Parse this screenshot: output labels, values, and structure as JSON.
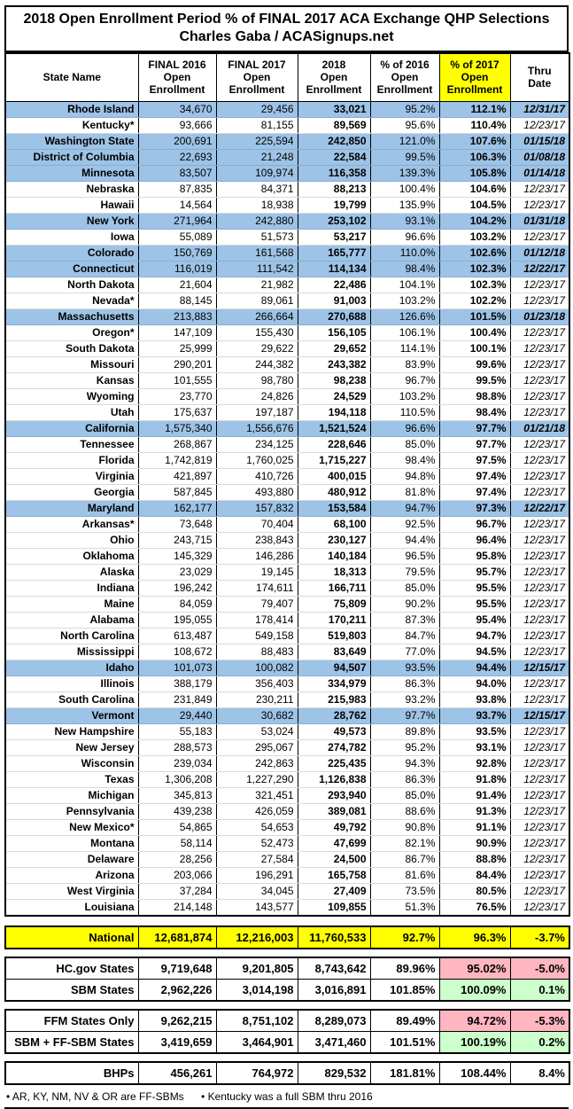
{
  "colors": {
    "sbm_row_blue": "#9DC3E6",
    "highlight_yellow": "#FFFF00",
    "negative_pink": "#FFB6C1",
    "positive_green": "#CCFFCC",
    "border_black": "#000000"
  },
  "chart_data": {
    "type": "table",
    "title": "2018 Open Enrollment Period % of FINAL 2017 ACA Exchange QHP Selections",
    "subtitle": "Charles Gaba / ACASignups.net",
    "columns": [
      "State Name",
      "FINAL 2016\nOpen\nEnrollment",
      "FINAL 2017\nOpen\nEnrollment",
      "2018\nOpen\nEnrollment",
      "% of 2016\nOpen\nEnrollment",
      "% of 2017\nOpen\nEnrollment",
      "Thru\nDate"
    ],
    "row_schema": [
      "state_name",
      "final_2016_open_enrollment",
      "final_2017_open_enrollment",
      "2018_open_enrollment",
      "pct_of_2016_open_enrollment",
      "pct_of_2017_open_enrollment",
      "thru_date",
      "blue_highlighted"
    ],
    "rows": [
      [
        "Rhode Island",
        "34,670",
        "29,456",
        "33,021",
        "95.2%",
        "112.1%",
        "12/31/17",
        true
      ],
      [
        "Kentucky*",
        "93,666",
        "81,155",
        "89,569",
        "95.6%",
        "110.4%",
        "12/23/17",
        false
      ],
      [
        "Washington State",
        "200,691",
        "225,594",
        "242,850",
        "121.0%",
        "107.6%",
        "01/15/18",
        true
      ],
      [
        "District of Columbia",
        "22,693",
        "21,248",
        "22,584",
        "99.5%",
        "106.3%",
        "01/08/18",
        true
      ],
      [
        "Minnesota",
        "83,507",
        "109,974",
        "116,358",
        "139.3%",
        "105.8%",
        "01/14/18",
        true
      ],
      [
        "Nebraska",
        "87,835",
        "84,371",
        "88,213",
        "100.4%",
        "104.6%",
        "12/23/17",
        false
      ],
      [
        "Hawaii",
        "14,564",
        "18,938",
        "19,799",
        "135.9%",
        "104.5%",
        "12/23/17",
        false
      ],
      [
        "New York",
        "271,964",
        "242,880",
        "253,102",
        "93.1%",
        "104.2%",
        "01/31/18",
        true
      ],
      [
        "Iowa",
        "55,089",
        "51,573",
        "53,217",
        "96.6%",
        "103.2%",
        "12/23/17",
        false
      ],
      [
        "Colorado",
        "150,769",
        "161,568",
        "165,777",
        "110.0%",
        "102.6%",
        "01/12/18",
        true
      ],
      [
        "Connecticut",
        "116,019",
        "111,542",
        "114,134",
        "98.4%",
        "102.3%",
        "12/22/17",
        true
      ],
      [
        "North Dakota",
        "21,604",
        "21,982",
        "22,486",
        "104.1%",
        "102.3%",
        "12/23/17",
        false
      ],
      [
        "Nevada*",
        "88,145",
        "89,061",
        "91,003",
        "103.2%",
        "102.2%",
        "12/23/17",
        false
      ],
      [
        "Massachusetts",
        "213,883",
        "266,664",
        "270,688",
        "126.6%",
        "101.5%",
        "01/23/18",
        true
      ],
      [
        "Oregon*",
        "147,109",
        "155,430",
        "156,105",
        "106.1%",
        "100.4%",
        "12/23/17",
        false
      ],
      [
        "South Dakota",
        "25,999",
        "29,622",
        "29,652",
        "114.1%",
        "100.1%",
        "12/23/17",
        false
      ],
      [
        "Missouri",
        "290,201",
        "244,382",
        "243,382",
        "83.9%",
        "99.6%",
        "12/23/17",
        false
      ],
      [
        "Kansas",
        "101,555",
        "98,780",
        "98,238",
        "96.7%",
        "99.5%",
        "12/23/17",
        false
      ],
      [
        "Wyoming",
        "23,770",
        "24,826",
        "24,529",
        "103.2%",
        "98.8%",
        "12/23/17",
        false
      ],
      [
        "Utah",
        "175,637",
        "197,187",
        "194,118",
        "110.5%",
        "98.4%",
        "12/23/17",
        false
      ],
      [
        "California",
        "1,575,340",
        "1,556,676",
        "1,521,524",
        "96.6%",
        "97.7%",
        "01/21/18",
        true
      ],
      [
        "Tennessee",
        "268,867",
        "234,125",
        "228,646",
        "85.0%",
        "97.7%",
        "12/23/17",
        false
      ],
      [
        "Florida",
        "1,742,819",
        "1,760,025",
        "1,715,227",
        "98.4%",
        "97.5%",
        "12/23/17",
        false
      ],
      [
        "Virginia",
        "421,897",
        "410,726",
        "400,015",
        "94.8%",
        "97.4%",
        "12/23/17",
        false
      ],
      [
        "Georgia",
        "587,845",
        "493,880",
        "480,912",
        "81.8%",
        "97.4%",
        "12/23/17",
        false
      ],
      [
        "Maryland",
        "162,177",
        "157,832",
        "153,584",
        "94.7%",
        "97.3%",
        "12/22/17",
        true
      ],
      [
        "Arkansas*",
        "73,648",
        "70,404",
        "68,100",
        "92.5%",
        "96.7%",
        "12/23/17",
        false
      ],
      [
        "Ohio",
        "243,715",
        "238,843",
        "230,127",
        "94.4%",
        "96.4%",
        "12/23/17",
        false
      ],
      [
        "Oklahoma",
        "145,329",
        "146,286",
        "140,184",
        "96.5%",
        "95.8%",
        "12/23/17",
        false
      ],
      [
        "Alaska",
        "23,029",
        "19,145",
        "18,313",
        "79.5%",
        "95.7%",
        "12/23/17",
        false
      ],
      [
        "Indiana",
        "196,242",
        "174,611",
        "166,711",
        "85.0%",
        "95.5%",
        "12/23/17",
        false
      ],
      [
        "Maine",
        "84,059",
        "79,407",
        "75,809",
        "90.2%",
        "95.5%",
        "12/23/17",
        false
      ],
      [
        "Alabama",
        "195,055",
        "178,414",
        "170,211",
        "87.3%",
        "95.4%",
        "12/23/17",
        false
      ],
      [
        "North Carolina",
        "613,487",
        "549,158",
        "519,803",
        "84.7%",
        "94.7%",
        "12/23/17",
        false
      ],
      [
        "Mississippi",
        "108,672",
        "88,483",
        "83,649",
        "77.0%",
        "94.5%",
        "12/23/17",
        false
      ],
      [
        "Idaho",
        "101,073",
        "100,082",
        "94,507",
        "93.5%",
        "94.4%",
        "12/15/17",
        true
      ],
      [
        "Illinois",
        "388,179",
        "356,403",
        "334,979",
        "86.3%",
        "94.0%",
        "12/23/17",
        false
      ],
      [
        "South Carolina",
        "231,849",
        "230,211",
        "215,983",
        "93.2%",
        "93.8%",
        "12/23/17",
        false
      ],
      [
        "Vermont",
        "29,440",
        "30,682",
        "28,762",
        "97.7%",
        "93.7%",
        "12/15/17",
        true
      ],
      [
        "New Hampshire",
        "55,183",
        "53,024",
        "49,573",
        "89.8%",
        "93.5%",
        "12/23/17",
        false
      ],
      [
        "New Jersey",
        "288,573",
        "295,067",
        "274,782",
        "95.2%",
        "93.1%",
        "12/23/17",
        false
      ],
      [
        "Wisconsin",
        "239,034",
        "242,863",
        "225,435",
        "94.3%",
        "92.8%",
        "12/23/17",
        false
      ],
      [
        "Texas",
        "1,306,208",
        "1,227,290",
        "1,126,838",
        "86.3%",
        "91.8%",
        "12/23/17",
        false
      ],
      [
        "Michigan",
        "345,813",
        "321,451",
        "293,940",
        "85.0%",
        "91.4%",
        "12/23/17",
        false
      ],
      [
        "Pennsylvania",
        "439,238",
        "426,059",
        "389,081",
        "88.6%",
        "91.3%",
        "12/23/17",
        false
      ],
      [
        "New Mexico*",
        "54,865",
        "54,653",
        "49,792",
        "90.8%",
        "91.1%",
        "12/23/17",
        false
      ],
      [
        "Montana",
        "58,114",
        "52,473",
        "47,699",
        "82.1%",
        "90.9%",
        "12/23/17",
        false
      ],
      [
        "Delaware",
        "28,256",
        "27,584",
        "24,500",
        "86.7%",
        "88.8%",
        "12/23/17",
        false
      ],
      [
        "Arizona",
        "203,066",
        "196,291",
        "165,758",
        "81.6%",
        "84.4%",
        "12/23/17",
        false
      ],
      [
        "West Virginia",
        "37,284",
        "34,045",
        "27,409",
        "73.5%",
        "80.5%",
        "12/23/17",
        false
      ],
      [
        "Louisiana",
        "214,148",
        "143,577",
        "109,855",
        "51.3%",
        "76.5%",
        "12/23/17",
        false
      ]
    ],
    "summary": [
      {
        "group": "national",
        "highlight": "yellow",
        "rows": [
          {
            "label": "National",
            "v2016": "12,681,874",
            "v2017": "12,216,003",
            "v2018": "11,760,533",
            "p2016": "92.7%",
            "p2017": "96.3%",
            "delta": "-3.7%"
          }
        ]
      },
      {
        "group": "hcgov-vs-sbm",
        "rows": [
          {
            "label": "HC.gov States",
            "v2016": "9,719,648",
            "v2017": "9,201,805",
            "v2018": "8,743,642",
            "p2016": "89.96%",
            "p2017": "95.02%",
            "delta": "-5.0%",
            "p2017_bg": "pink",
            "delta_bg": "pink"
          },
          {
            "label": "SBM States",
            "v2016": "2,962,226",
            "v2017": "3,014,198",
            "v2018": "3,016,891",
            "p2016": "101.85%",
            "p2017": "100.09%",
            "delta": "0.1%",
            "p2017_bg": "green",
            "delta_bg": "green"
          }
        ]
      },
      {
        "group": "ffm-vs-sbm-ffsbm",
        "rows": [
          {
            "label": "FFM States Only",
            "v2016": "9,262,215",
            "v2017": "8,751,102",
            "v2018": "8,289,073",
            "p2016": "89.49%",
            "p2017": "94.72%",
            "delta": "-5.3%",
            "p2017_bg": "pink",
            "delta_bg": "pink"
          },
          {
            "label": "SBM + FF-SBM States",
            "v2016": "3,419,659",
            "v2017": "3,464,901",
            "v2018": "3,471,460",
            "p2016": "101.51%",
            "p2017": "100.19%",
            "delta": "0.2%",
            "p2017_bg": "green",
            "delta_bg": "green"
          }
        ]
      },
      {
        "group": "bhps",
        "rows": [
          {
            "label": "BHPs",
            "v2016": "456,261",
            "v2017": "764,972",
            "v2018": "829,532",
            "p2016": "181.81%",
            "p2017": "108.44%",
            "delta": "8.4%"
          }
        ]
      }
    ],
    "footnotes": [
      "• AR, KY, NM, NV & OR are FF-SBMs",
      "• Kentucky was a full SBM thru 2016"
    ]
  }
}
